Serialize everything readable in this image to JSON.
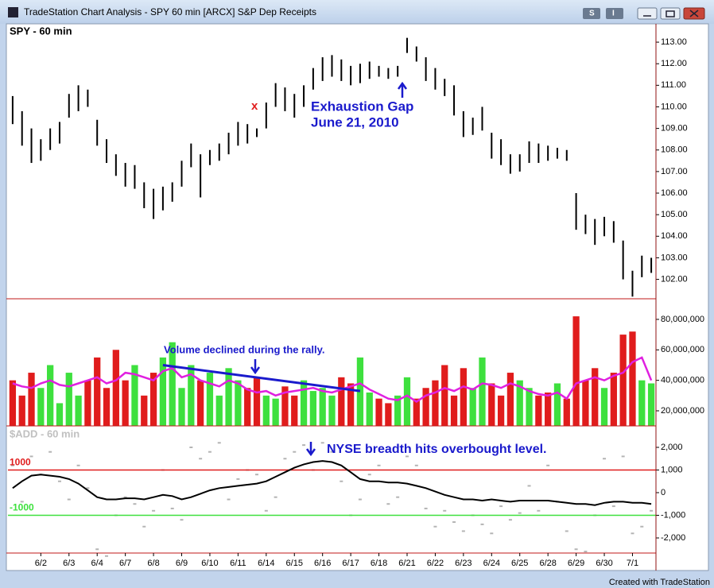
{
  "window": {
    "title": "TradeStation Chart Analysis - SPY 60 min [ARCX] S&P Dep Receipts",
    "buttons": [
      "S",
      "I"
    ],
    "footer": "Created with TradeStation"
  },
  "chart_data": [
    {
      "type": "ohlc",
      "title": "SPY - 60 min",
      "color": "#000000",
      "high": [
        110.5,
        109.8,
        109.0,
        108.5,
        109.0,
        109.3,
        110.6,
        111.0,
        110.8,
        109.4,
        108.5,
        107.8,
        107.4,
        107.3,
        106.5,
        106.2,
        106.3,
        106.5,
        107.5,
        108.3,
        107.8,
        108.0,
        108.3,
        108.8,
        109.3,
        109.2,
        109.0,
        110.2,
        111.1,
        110.9,
        110.6,
        111.0,
        111.8,
        112.3,
        112.4,
        112.2,
        111.9,
        112.0,
        112.1,
        111.9,
        111.8,
        111.9,
        113.2,
        112.8,
        112.3,
        111.8,
        111.3,
        111.0,
        109.8,
        109.5,
        110.0,
        108.8,
        108.5,
        107.8,
        107.8,
        108.4,
        108.3,
        108.2,
        108.1,
        108.0,
        106.0,
        105.0,
        104.8,
        104.9,
        104.7,
        103.8,
        102.4,
        103.1,
        103.0
      ],
      "low": [
        109.2,
        108.2,
        107.4,
        107.5,
        108.0,
        108.3,
        109.5,
        109.8,
        110.0,
        108.2,
        107.4,
        106.8,
        106.3,
        106.2,
        105.3,
        104.8,
        105.2,
        105.6,
        106.3,
        107.2,
        105.8,
        107.3,
        107.5,
        107.8,
        108.2,
        108.3,
        108.6,
        109.0,
        110.0,
        109.8,
        109.5,
        110.0,
        110.8,
        111.2,
        111.4,
        111.2,
        111.0,
        111.1,
        111.3,
        111.4,
        111.3,
        111.4,
        112.5,
        112.1,
        111.2,
        110.8,
        110.5,
        109.6,
        108.6,
        108.7,
        108.9,
        107.6,
        107.3,
        106.9,
        107.0,
        107.4,
        107.4,
        107.5,
        107.6,
        107.5,
        104.3,
        104.1,
        103.6,
        104.0,
        103.7,
        102.0,
        101.2,
        102.1,
        102.3
      ],
      "ylim": [
        101.1,
        113.85
      ],
      "yticks": [
        {
          "value": 102,
          "label": "102.00"
        },
        {
          "value": 103,
          "label": "103.00"
        },
        {
          "value": 104,
          "label": "104.00"
        },
        {
          "value": 105,
          "label": "105.00"
        },
        {
          "value": 106,
          "label": "106.00"
        },
        {
          "value": 107,
          "label": "107.00"
        },
        {
          "value": 108,
          "label": "108.00"
        },
        {
          "value": 109,
          "label": "109.00"
        },
        {
          "value": 110,
          "label": "110.00"
        },
        {
          "value": 111,
          "label": "111.00"
        },
        {
          "value": 112,
          "label": "112.00"
        },
        {
          "value": 113,
          "label": "113.00"
        }
      ],
      "annotations": [
        "Exhaustion Gap",
        "June 21, 2010",
        "x"
      ]
    },
    {
      "type": "bar",
      "values": [
        40000000,
        30000000,
        45000000,
        35000000,
        50000000,
        25000000,
        45000000,
        30000000,
        40000000,
        55000000,
        35000000,
        60000000,
        40000000,
        50000000,
        30000000,
        45000000,
        55000000,
        65000000,
        35000000,
        50000000,
        40000000,
        45000000,
        30000000,
        48000000,
        40000000,
        35000000,
        42000000,
        30000000,
        28000000,
        36000000,
        30000000,
        40000000,
        33000000,
        35000000,
        30000000,
        42000000,
        38000000,
        55000000,
        32000000,
        28000000,
        25000000,
        30000000,
        42000000,
        28000000,
        35000000,
        40000000,
        50000000,
        30000000,
        48000000,
        35000000,
        55000000,
        38000000,
        30000000,
        45000000,
        40000000,
        35000000,
        30000000,
        32000000,
        38000000,
        28000000,
        82000000,
        40000000,
        48000000,
        35000000,
        45000000,
        70000000,
        72000000,
        40000000,
        38000000
      ],
      "colors": [
        "#e01c1c",
        "#e01c1c",
        "#e01c1c",
        "#3ee03e",
        "#3ee03e",
        "#3ee03e",
        "#3ee03e",
        "#3ee03e",
        "#e01c1c",
        "#e01c1c",
        "#e01c1c",
        "#e01c1c",
        "#e01c1c",
        "#3ee03e",
        "#e01c1c",
        "#e01c1c",
        "#3ee03e",
        "#3ee03e",
        "#3ee03e",
        "#3ee03e",
        "#e01c1c",
        "#3ee03e",
        "#3ee03e",
        "#3ee03e",
        "#3ee03e",
        "#e01c1c",
        "#e01c1c",
        "#3ee03e",
        "#3ee03e",
        "#e01c1c",
        "#e01c1c",
        "#3ee03e",
        "#3ee03e",
        "#3ee03e",
        "#3ee03e",
        "#e01c1c",
        "#e01c1c",
        "#3ee03e",
        "#3ee03e",
        "#e01c1c",
        "#e01c1c",
        "#3ee03e",
        "#3ee03e",
        "#e01c1c",
        "#e01c1c",
        "#e01c1c",
        "#e01c1c",
        "#e01c1c",
        "#e01c1c",
        "#3ee03e",
        "#3ee03e",
        "#e01c1c",
        "#e01c1c",
        "#e01c1c",
        "#3ee03e",
        "#3ee03e",
        "#e01c1c",
        "#e01c1c",
        "#3ee03e",
        "#e01c1c",
        "#e01c1c",
        "#e01c1c",
        "#e01c1c",
        "#3ee03e",
        "#e01c1c",
        "#e01c1c",
        "#e01c1c",
        "#3ee03e",
        "#3ee03e"
      ],
      "average": {
        "color": "#e020e0",
        "values": [
          38000000,
          36000000,
          35000000,
          38000000,
          40000000,
          37000000,
          36000000,
          38000000,
          40000000,
          42000000,
          38000000,
          40000000,
          45000000,
          44000000,
          42000000,
          40000000,
          46000000,
          48000000,
          42000000,
          44000000,
          40000000,
          38000000,
          36000000,
          40000000,
          38000000,
          34000000,
          32000000,
          33000000,
          30000000,
          32000000,
          33000000,
          34000000,
          35000000,
          33000000,
          32000000,
          34000000,
          36000000,
          38000000,
          34000000,
          31000000,
          28000000,
          27000000,
          30000000,
          26000000,
          30000000,
          32000000,
          35000000,
          33000000,
          36000000,
          34000000,
          38000000,
          37000000,
          35000000,
          38000000,
          36000000,
          33000000,
          31000000,
          30000000,
          32000000,
          28000000,
          38000000,
          40000000,
          42000000,
          40000000,
          43000000,
          45000000,
          52000000,
          55000000,
          40000000
        ]
      },
      "trendline": {
        "color": "#1a1acc",
        "x": [
          16,
          37
        ],
        "values": [
          50000000,
          33000000
        ]
      },
      "ylim": [
        10100000,
        93000000
      ],
      "yticks": [
        {
          "value": 20000000,
          "label": "20,000,000"
        },
        {
          "value": 40000000,
          "label": "40,000,000"
        },
        {
          "value": 60000000,
          "label": "60,000,000"
        },
        {
          "value": 80000000,
          "label": "80,000,000"
        }
      ],
      "annotations": [
        "Volume declined during the rally."
      ]
    },
    {
      "type": "line",
      "title": "$ADD - 60 min",
      "color": "#b4b4b4",
      "categories": [
        null,
        null,
        null,
        "6/2",
        null,
        null,
        "6/3",
        null,
        null,
        "6/4",
        null,
        null,
        "6/7",
        null,
        null,
        "6/8",
        null,
        null,
        "6/9",
        null,
        null,
        "6/10",
        null,
        null,
        "6/11",
        null,
        null,
        "6/14",
        null,
        null,
        "6/15",
        null,
        null,
        "6/16",
        null,
        null,
        "6/17",
        null,
        null,
        "6/18",
        null,
        null,
        "6/21",
        null,
        null,
        "6/22",
        null,
        null,
        "6/23",
        null,
        null,
        "6/24",
        null,
        null,
        "6/25",
        null,
        null,
        "6/28",
        null,
        null,
        "6/29",
        null,
        null,
        "6/30",
        null,
        null,
        "7/1",
        null,
        null
      ],
      "values": [
        1200,
        -400,
        1600,
        800,
        1800,
        500,
        -300,
        1200,
        200,
        -2500,
        -2800,
        -1000,
        -200,
        -500,
        -1500,
        -800,
        1000,
        -700,
        -1200,
        2000,
        1500,
        1800,
        2200,
        -300,
        600,
        1000,
        800,
        -800,
        -200,
        1500,
        1800,
        2100,
        1000,
        2200,
        1800,
        500,
        -1000,
        -300,
        800,
        1200,
        -500,
        -200,
        1600,
        1200,
        -700,
        -1500,
        -800,
        -1300,
        -1700,
        -1000,
        -1400,
        -1800,
        -600,
        -1200,
        -900,
        300,
        -800,
        1200,
        -400,
        -1700,
        -2500,
        -2600,
        -1000,
        1500,
        -600,
        1600,
        -1800,
        -1500,
        -800
      ],
      "average": {
        "color": "#000000",
        "values": [
          200,
          500,
          750,
          800,
          750,
          700,
          600,
          400,
          100,
          -200,
          -300,
          -300,
          -250,
          -250,
          -300,
          -200,
          -100,
          -150,
          -300,
          -200,
          -50,
          100,
          200,
          250,
          300,
          350,
          400,
          500,
          700,
          900,
          1100,
          1250,
          1350,
          1400,
          1350,
          1200,
          900,
          600,
          500,
          500,
          450,
          450,
          400,
          300,
          200,
          50,
          -100,
          -200,
          -300,
          -300,
          -350,
          -300,
          -350,
          -400,
          -350,
          -350,
          -350,
          -350,
          -400,
          -450,
          -500,
          -500,
          -550,
          -450,
          -400,
          -400,
          -450,
          -450,
          -500
        ]
      },
      "levels": [
        {
          "value": 1000,
          "color": "#e01c1c"
        },
        {
          "value": -1000,
          "color": "#3ee03e"
        }
      ],
      "ylim": [
        -2667,
        2912
      ],
      "yticks": [
        {
          "value": 2000,
          "label": "2,000"
        },
        {
          "value": 1000,
          "label": "1,000"
        },
        0,
        {
          "value": -1000,
          "label": "-1,000"
        },
        {
          "value": -2000,
          "label": "-2,000"
        }
      ],
      "annotations": [
        "NYSE breadth hits overbought level."
      ]
    }
  ]
}
